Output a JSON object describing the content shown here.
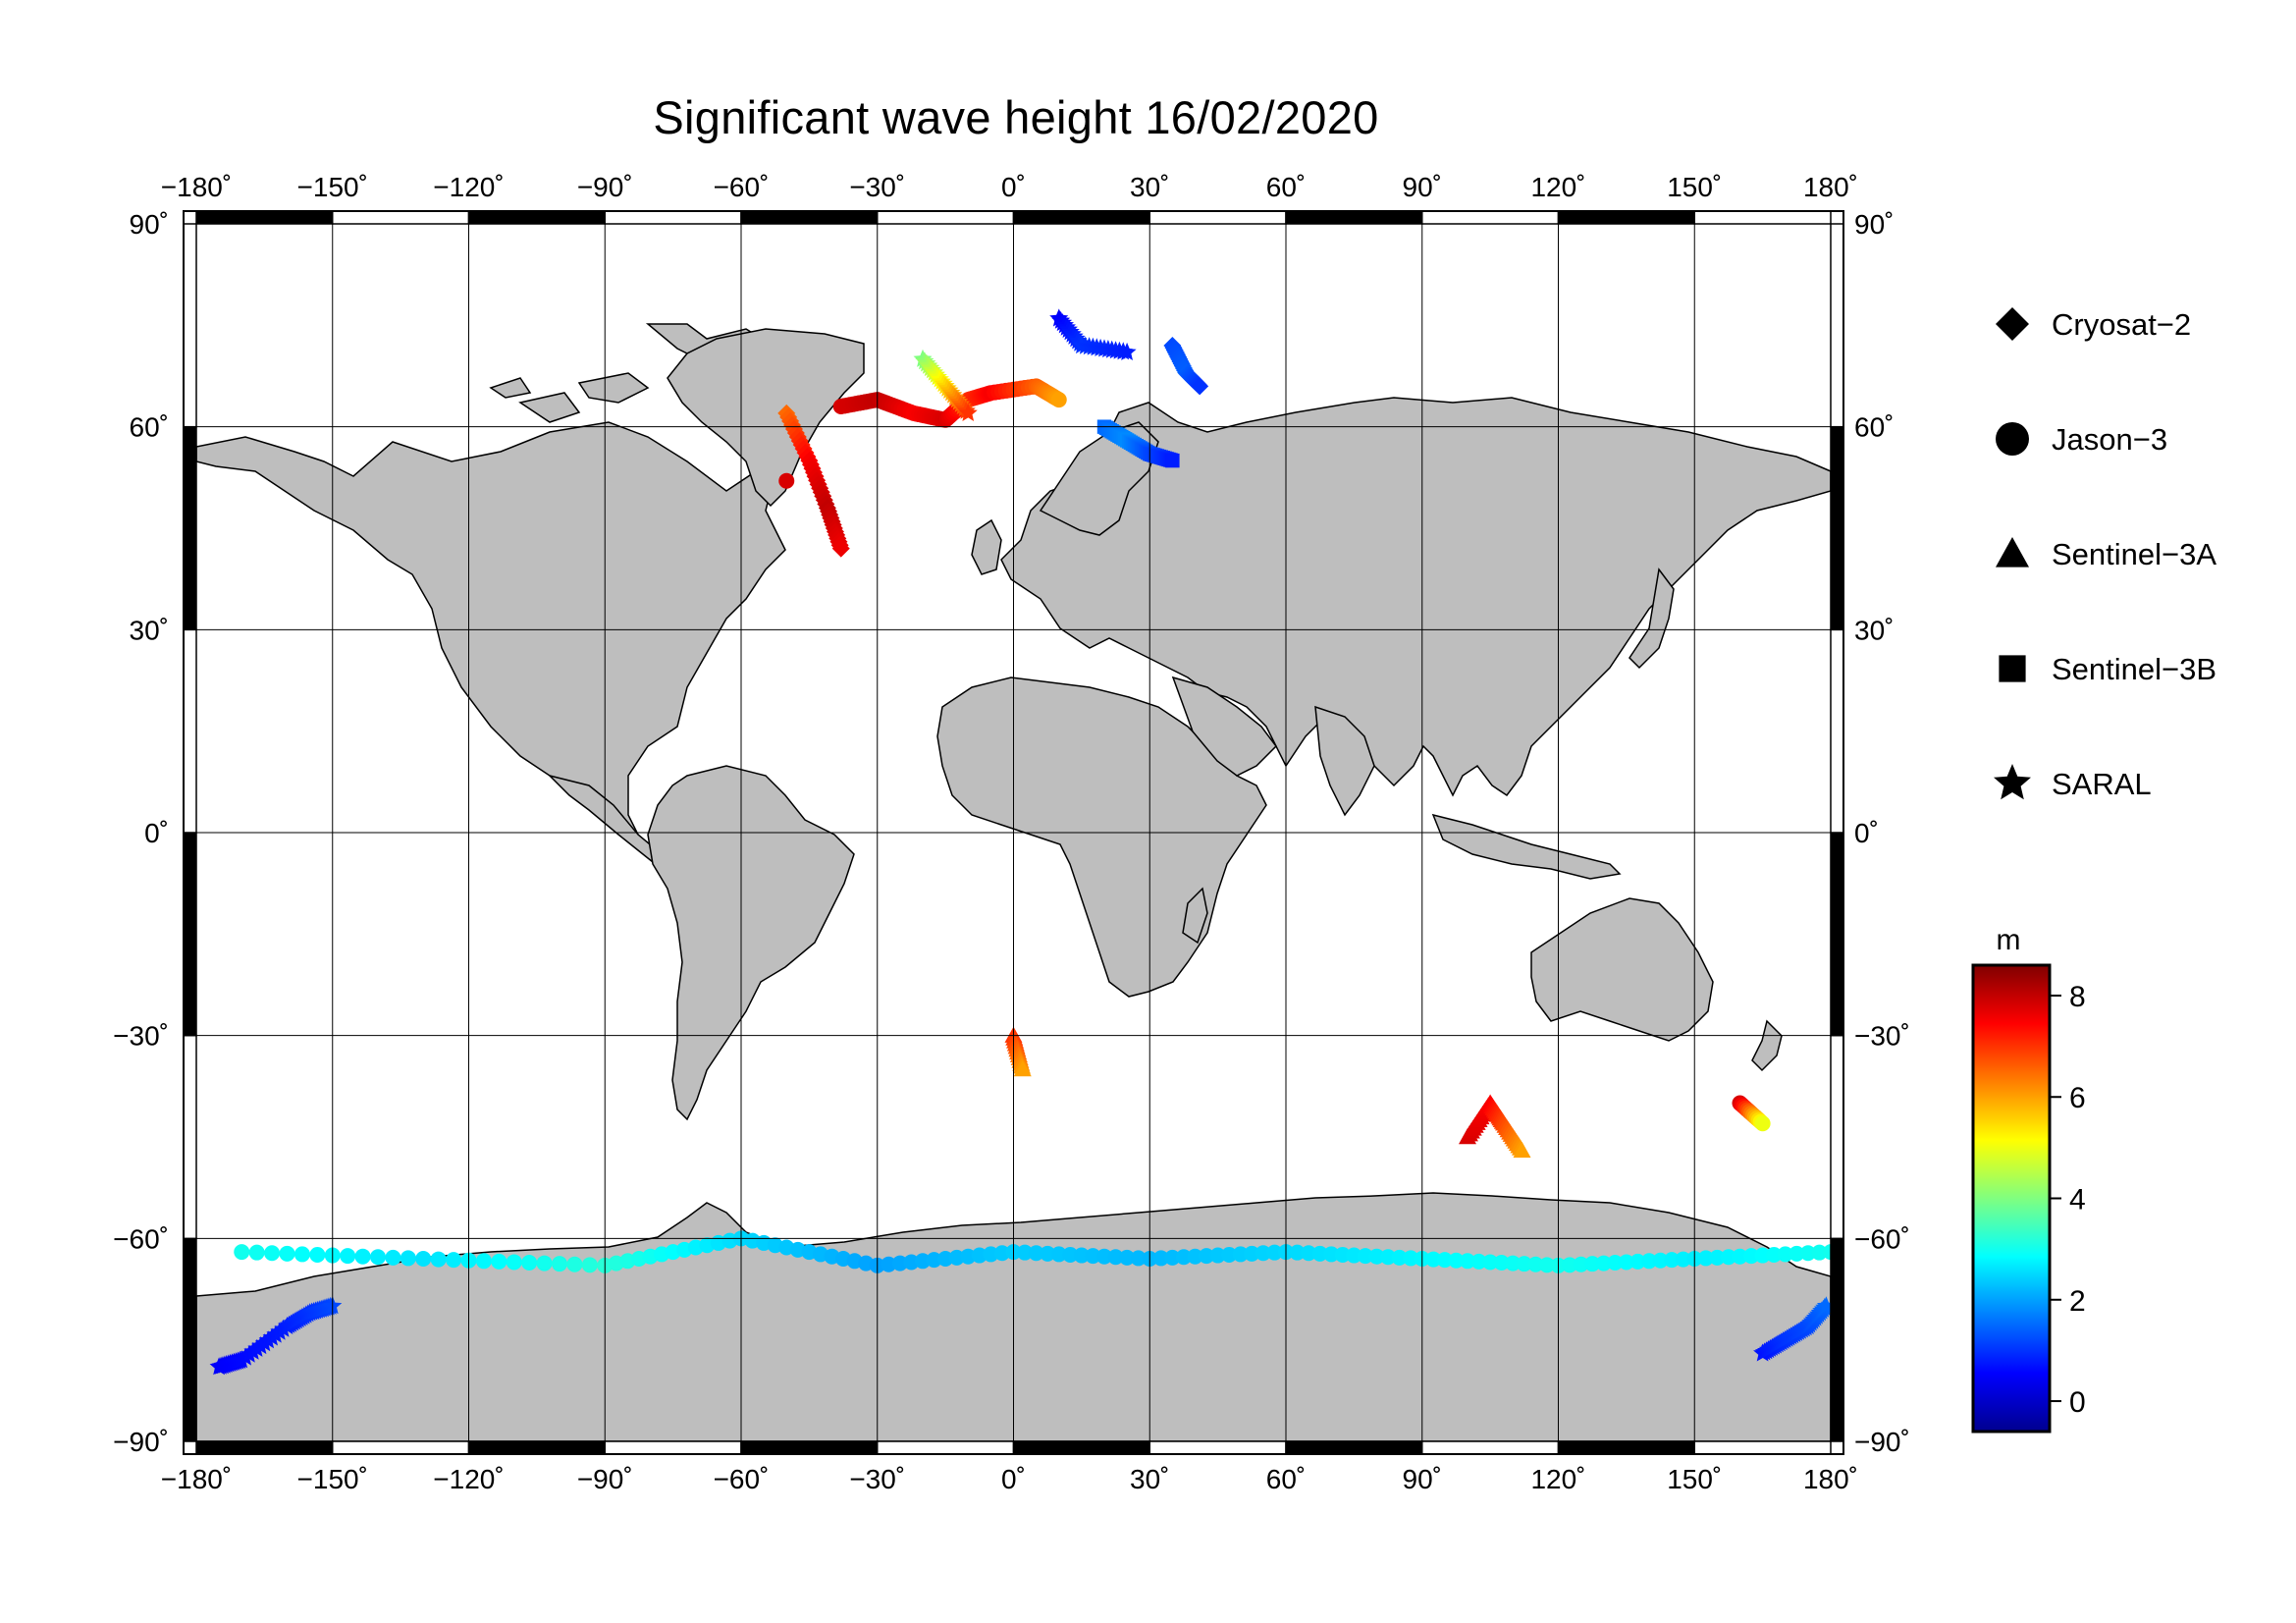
{
  "title": "Significant wave height 16/02/2020",
  "map": {
    "projection": "equirectangular",
    "lon_range": [
      -180,
      180
    ],
    "lat_range": [
      -90,
      90
    ],
    "lon_ticks": [
      -180,
      -150,
      -120,
      -90,
      -60,
      -30,
      0,
      30,
      60,
      90,
      120,
      150,
      180
    ],
    "lat_ticks": [
      -90,
      -60,
      -30,
      0,
      30,
      60,
      90
    ],
    "lon_labels": [
      "−180˚",
      "−150˚",
      "−120˚",
      "−90˚",
      "−60˚",
      "−30˚",
      "0˚",
      "30˚",
      "60˚",
      "90˚",
      "120˚",
      "150˚",
      "180˚"
    ],
    "lat_labels": [
      "−90˚",
      "−60˚",
      "−30˚",
      "0˚",
      "30˚",
      "60˚",
      "90˚"
    ],
    "grid": true,
    "land_color": "#bebebe",
    "ocean_color": "#ffffff"
  },
  "legend": {
    "placement": "right",
    "items": [
      {
        "label": "Cryosat−2",
        "symbol": "diamond"
      },
      {
        "label": "Jason−3",
        "symbol": "circle"
      },
      {
        "label": "Sentinel−3A",
        "symbol": "triangle"
      },
      {
        "label": "Sentinel−3B",
        "symbol": "square"
      },
      {
        "label": "SARAL",
        "symbol": "star"
      }
    ]
  },
  "colorbar": {
    "unit": "m",
    "range": [
      -0.6,
      8.6
    ],
    "ticks": [
      8,
      6,
      4,
      2,
      0
    ],
    "colormap": "jet"
  },
  "chart_data": {
    "type": "scatter",
    "title": "Significant wave height 16/02/2020",
    "xlabel": "",
    "ylabel": "",
    "xlim": [
      -180,
      180
    ],
    "ylim": [
      -90,
      90
    ],
    "value_unit": "m",
    "value_range": [
      -0.6,
      8.6
    ],
    "series": [
      {
        "name": "Cryosat−2",
        "symbol": "diamond",
        "tracks": [
          {
            "lon": [
              -50,
              -45,
              -41,
              -38
            ],
            "lat": [
              62,
              55,
              48,
              42
            ],
            "value": [
              6.5,
              7.5,
              8.0,
              7.6
            ]
          },
          {
            "lon": [
              35,
              38,
              41
            ],
            "lat": [
              72,
              68,
              66
            ],
            "value": [
              1.2,
              1.4,
              1.0
            ]
          }
        ]
      },
      {
        "name": "Jason−3",
        "symbol": "circle",
        "tracks": [
          {
            "lon": [
              -38,
              -30,
              -22,
              -15,
              -10,
              -5,
              5,
              10
            ],
            "lat": [
              63,
              64,
              62,
              61,
              64,
              65,
              66,
              64
            ],
            "value": [
              7.8,
              8.0,
              7.5,
              7.8,
              7.0,
              7.5,
              6.6,
              6.0
            ]
          },
          {
            "lon": [
              -170,
              -130,
              -90,
              -60,
              -30,
              0,
              30,
              60,
              90,
              120,
              150,
              180
            ],
            "lat": [
              -62,
              -63,
              -64,
              -60,
              -64,
              -62,
              -63,
              -62,
              -63,
              -64,
              -63,
              -62
            ],
            "value": [
              3.0,
              2.6,
              3.2,
              2.5,
              2.0,
              2.4,
              2.2,
              2.5,
              2.8,
              3.0,
              2.7,
              3.0
            ]
          },
          {
            "lon": [
              160,
              165
            ],
            "lat": [
              -40,
              -43
            ],
            "value": [
              7.8,
              5.0
            ]
          },
          {
            "lon": [
              -50
            ],
            "lat": [
              52
            ],
            "value": [
              7.8
            ]
          }
        ]
      },
      {
        "name": "Sentinel−3A",
        "symbol": "triangle",
        "tracks": [
          {
            "lon": [
              100,
              105,
              108,
              112
            ],
            "lat": [
              -45,
              -40,
              -43,
              -47
            ],
            "value": [
              7.8,
              7.5,
              6.8,
              6.0
            ]
          },
          {
            "lon": [
              0,
              2
            ],
            "lat": [
              -30,
              -35
            ],
            "value": [
              7.0,
              6.0
            ]
          }
        ]
      },
      {
        "name": "Sentinel−3B",
        "symbol": "square",
        "tracks": [
          {
            "lon": [
              20,
              25,
              30,
              35
            ],
            "lat": [
              60,
              58,
              56,
              55
            ],
            "value": [
              1.5,
              1.8,
              1.2,
              0.8
            ]
          }
        ]
      },
      {
        "name": "SARAL",
        "symbol": "star",
        "tracks": [
          {
            "lon": [
              -175,
              -170,
              -160,
              -155,
              -150
            ],
            "lat": [
              -79,
              -78,
              -73,
              -71,
              -70
            ],
            "value": [
              0.5,
              0.6,
              0.8,
              1.0,
              1.2
            ]
          },
          {
            "lon": [
              165,
              170,
              175,
              179
            ],
            "lat": [
              -77,
              -75,
              -73,
              -70
            ],
            "value": [
              0.7,
              1.0,
              1.2,
              1.5
            ]
          },
          {
            "lon": [
              -20,
              -15,
              -10
            ],
            "lat": [
              70,
              66,
              62
            ],
            "value": [
              4.0,
              5.5,
              7.0
            ]
          },
          {
            "lon": [
              10,
              15,
              25
            ],
            "lat": [
              76,
              72,
              71
            ],
            "value": [
              0.5,
              1.0,
              0.8
            ]
          }
        ]
      }
    ]
  }
}
